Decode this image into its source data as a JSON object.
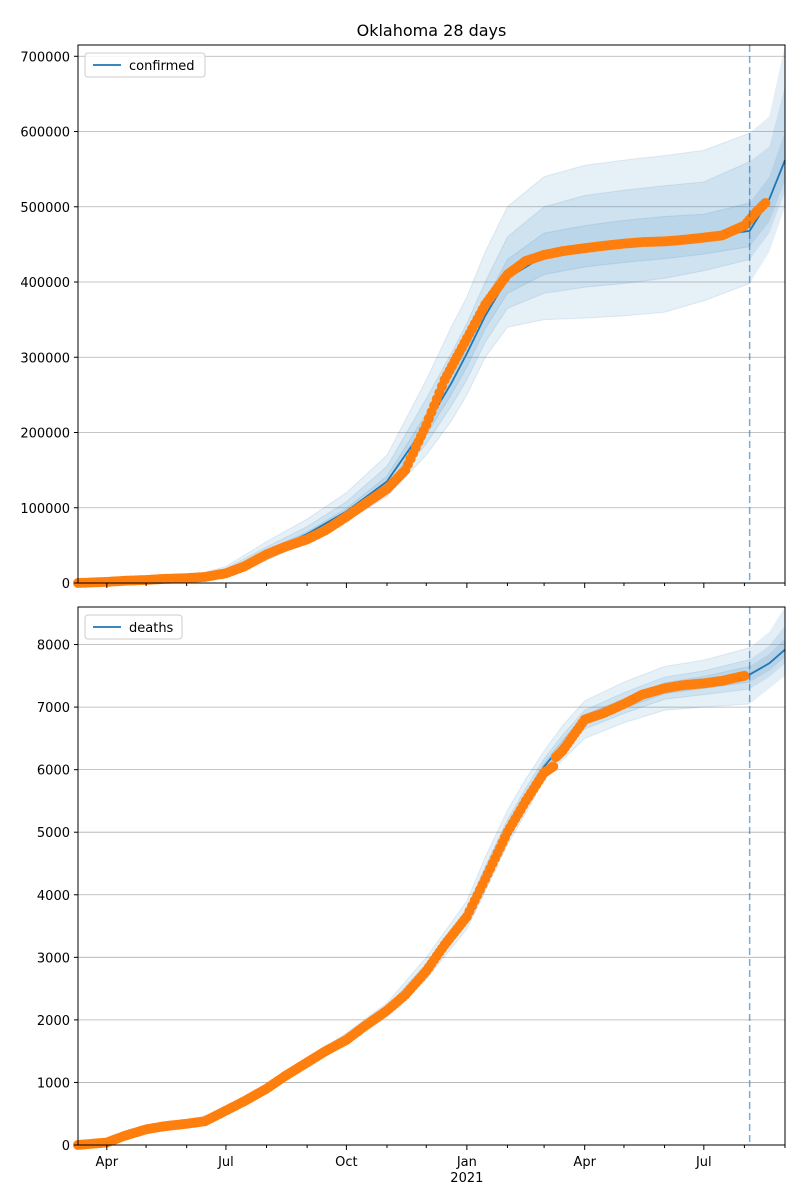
{
  "chart_data": [
    {
      "type": "line",
      "title": "Oklahoma 28 days",
      "legend": {
        "label": "confirmed",
        "placement": "top-left"
      },
      "ylim": [
        0,
        715000
      ],
      "y_ticks": [
        0,
        100000,
        200000,
        300000,
        400000,
        500000,
        600000,
        700000
      ],
      "y_tick_labels": [
        "0",
        "100000",
        "200000",
        "300000",
        "400000",
        "500000",
        "600000",
        "700000"
      ],
      "grid": true,
      "forecast_start": "2021-08-05",
      "model_x": [
        "2020-03-10",
        "2020-04-01",
        "2020-05-01",
        "2020-06-01",
        "2020-07-01",
        "2020-08-01",
        "2020-09-01",
        "2020-10-01",
        "2020-11-01",
        "2020-12-01",
        "2020-12-20",
        "2021-01-01",
        "2021-01-15",
        "2021-02-01",
        "2021-03-01",
        "2021-04-01",
        "2021-05-01",
        "2021-06-01",
        "2021-07-01",
        "2021-08-05",
        "2021-08-20",
        "2021-09-01"
      ],
      "model_y": [
        0,
        1500,
        4000,
        6000,
        15000,
        40000,
        65000,
        95000,
        135000,
        210000,
        265000,
        305000,
        355000,
        405000,
        435000,
        445000,
        452000,
        457000,
        460000,
        468000,
        510000,
        562000
      ],
      "bands": [
        {
          "lower": [
            0,
            1200,
            3000,
            4000,
            8000,
            30000,
            55000,
            82000,
            115000,
            170000,
            215000,
            250000,
            300000,
            340000,
            350000,
            352000,
            355000,
            360000,
            375000,
            398000
          ],
          "upper": [
            0,
            1800,
            5000,
            8000,
            22000,
            55000,
            85000,
            120000,
            170000,
            270000,
            340000,
            380000,
            440000,
            500000,
            540000,
            555000,
            562000,
            568000,
            575000,
            598000
          ]
        },
        {
          "lower": [
            0,
            1300,
            3400,
            4800,
            11000,
            34000,
            59000,
            87000,
            123000,
            185000,
            235000,
            270000,
            320000,
            365000,
            385000,
            393000,
            398000,
            405000,
            415000,
            430000
          ],
          "upper": [
            0,
            1700,
            4600,
            7200,
            19000,
            48000,
            75000,
            108000,
            155000,
            245000,
            305000,
            345000,
            400000,
            460000,
            500000,
            515000,
            522000,
            528000,
            533000,
            560000
          ]
        },
        {
          "lower": [
            0,
            1400,
            3700,
            5400,
            13000,
            37000,
            62000,
            91000,
            129000,
            197000,
            250000,
            287000,
            338000,
            385000,
            410000,
            420000,
            426000,
            431000,
            437000,
            447000
          ],
          "upper": [
            0,
            1600,
            4300,
            6600,
            17000,
            43000,
            68000,
            99000,
            142000,
            225000,
            282000,
            325000,
            375000,
            430000,
            465000,
            475000,
            482000,
            487000,
            490000,
            505000
          ]
        }
      ],
      "forecast_bands": [
        {
          "x": [
            "2021-08-05",
            "2021-08-20",
            "2021-09-01"
          ],
          "lower": [
            398000,
            440000,
            500000
          ],
          "upper": [
            598000,
            620000,
            715000
          ]
        },
        {
          "x": [
            "2021-08-05",
            "2021-08-20",
            "2021-09-01"
          ],
          "lower": [
            430000,
            465000,
            520000
          ],
          "upper": [
            560000,
            580000,
            660000
          ]
        },
        {
          "x": [
            "2021-08-05",
            "2021-08-20",
            "2021-09-01"
          ],
          "lower": [
            447000,
            480000,
            535000
          ],
          "upper": [
            505000,
            540000,
            600000
          ]
        }
      ],
      "observed_x": [
        "2020-03-10",
        "2020-04-01",
        "2020-04-15",
        "2020-05-01",
        "2020-05-15",
        "2020-06-01",
        "2020-06-15",
        "2020-07-01",
        "2020-07-15",
        "2020-08-01",
        "2020-08-15",
        "2020-09-01",
        "2020-09-15",
        "2020-10-01",
        "2020-10-15",
        "2020-11-01",
        "2020-11-15",
        "2020-12-01",
        "2020-12-15",
        "2021-01-01",
        "2021-01-15",
        "2021-02-01",
        "2021-02-15",
        "2021-03-01",
        "2021-03-15",
        "2021-04-01",
        "2021-04-15",
        "2021-05-01",
        "2021-05-15",
        "2021-06-01",
        "2021-06-15",
        "2021-07-01",
        "2021-07-15",
        "2021-08-01",
        "2021-08-10",
        "2021-08-17"
      ],
      "observed_y": [
        0,
        1500,
        3000,
        4000,
        5500,
        6500,
        8000,
        13000,
        22000,
        38000,
        48000,
        58000,
        70000,
        88000,
        105000,
        125000,
        150000,
        210000,
        270000,
        325000,
        370000,
        410000,
        428000,
        436000,
        441000,
        445000,
        448000,
        451000,
        453000,
        454000,
        456000,
        459000,
        462000,
        475000,
        493000,
        505000
      ]
    },
    {
      "type": "line",
      "title": "",
      "xlabel": "",
      "legend": {
        "label": "deaths",
        "placement": "top-left"
      },
      "ylim": [
        0,
        8600
      ],
      "y_ticks": [
        0,
        1000,
        2000,
        3000,
        4000,
        5000,
        6000,
        7000,
        8000
      ],
      "y_tick_labels": [
        "0",
        "1000",
        "2000",
        "3000",
        "4000",
        "5000",
        "6000",
        "7000",
        "8000"
      ],
      "x_range": [
        "2020-03-10",
        "2021-09-01"
      ],
      "x_ticks": [
        {
          "date": "2020-04-01",
          "label": "Apr"
        },
        {
          "date": "2020-07-01",
          "label": "Jul"
        },
        {
          "date": "2020-10-01",
          "label": "Oct"
        },
        {
          "date": "2021-01-01",
          "label": "Jan"
        },
        {
          "date": "2021-04-01",
          "label": "Apr"
        },
        {
          "date": "2021-07-01",
          "label": "Jul"
        }
      ],
      "x_minor_months": [
        "2020-05-01",
        "2020-06-01",
        "2020-08-01",
        "2020-09-01",
        "2020-11-01",
        "2020-12-01",
        "2021-02-01",
        "2021-03-01",
        "2021-05-01",
        "2021-06-01",
        "2021-08-01",
        "2021-09-01"
      ],
      "x_year_label": "2021",
      "grid": true,
      "forecast_start": "2021-08-05",
      "model_x": [
        "2020-03-10",
        "2020-04-01",
        "2020-05-01",
        "2020-06-01",
        "2020-07-01",
        "2020-08-01",
        "2020-09-01",
        "2020-10-01",
        "2020-11-01",
        "2020-12-01",
        "2021-01-01",
        "2021-01-15",
        "2021-02-01",
        "2021-02-15",
        "2021-03-01",
        "2021-03-15",
        "2021-04-01",
        "2021-05-01",
        "2021-06-01",
        "2021-07-01",
        "2021-08-05",
        "2021-08-20",
        "2021-09-01"
      ],
      "model_y": [
        0,
        50,
        270,
        340,
        560,
        920,
        1300,
        1700,
        2150,
        2800,
        3650,
        4300,
        5050,
        5550,
        6050,
        6400,
        6800,
        7050,
        7300,
        7400,
        7520,
        7700,
        7920
      ],
      "bands": [
        {
          "lower": [
            0,
            40,
            250,
            320,
            520,
            870,
            1230,
            1620,
            2050,
            2650,
            3450,
            4050,
            4800,
            5300,
            5850,
            6150,
            6500,
            6750,
            6950,
            7000,
            7050
          ],
          "upper": [
            0,
            60,
            290,
            360,
            600,
            980,
            1380,
            1790,
            2270,
            3000,
            3900,
            4600,
            5350,
            5850,
            6300,
            6700,
            7100,
            7400,
            7650,
            7750,
            7950
          ]
        },
        {
          "lower": [
            0,
            45,
            260,
            330,
            540,
            895,
            1265,
            1660,
            2100,
            2725,
            3550,
            4175,
            4925,
            5425,
            5950,
            6275,
            6650,
            6900,
            7125,
            7200,
            7290
          ],
          "upper": [
            0,
            55,
            280,
            350,
            580,
            950,
            1340,
            1745,
            2210,
            2900,
            3775,
            4450,
            5200,
            5700,
            6175,
            6550,
            6950,
            7230,
            7480,
            7580,
            7760
          ]
        },
        {
          "lower": [
            0,
            48,
            265,
            335,
            550,
            910,
            1285,
            1680,
            2130,
            2770,
            3600,
            4240,
            4990,
            5490,
            6000,
            6340,
            6725,
            6980,
            7215,
            7300,
            7400
          ],
          "upper": [
            0,
            52,
            275,
            345,
            570,
            935,
            1320,
            1725,
            2180,
            2850,
            3710,
            4370,
            5120,
            5620,
            6110,
            6470,
            6880,
            7130,
            7390,
            7490,
            7650
          ]
        }
      ],
      "forecast_bands": [
        {
          "x": [
            "2021-08-05",
            "2021-08-20",
            "2021-09-01"
          ],
          "lower": [
            7050,
            7300,
            7500
          ],
          "upper": [
            7950,
            8200,
            8600
          ]
        },
        {
          "x": [
            "2021-08-05",
            "2021-08-20",
            "2021-09-01"
          ],
          "lower": [
            7290,
            7480,
            7700
          ],
          "upper": [
            7760,
            7980,
            8300
          ]
        },
        {
          "x": [
            "2021-08-05",
            "2021-08-20",
            "2021-09-01"
          ],
          "lower": [
            7400,
            7580,
            7800
          ],
          "upper": [
            7650,
            7850,
            8100
          ]
        }
      ],
      "observed_x": [
        "2020-03-10",
        "2020-04-01",
        "2020-04-15",
        "2020-05-01",
        "2020-05-15",
        "2020-06-01",
        "2020-06-15",
        "2020-07-01",
        "2020-07-15",
        "2020-08-01",
        "2020-08-15",
        "2020-09-01",
        "2020-09-15",
        "2020-10-01",
        "2020-10-15",
        "2020-11-01",
        "2020-11-15",
        "2020-12-01",
        "2020-12-15",
        "2021-01-01",
        "2021-01-15",
        "2021-02-01",
        "2021-02-15",
        "2021-03-01",
        "2021-03-08",
        "2021-03-10",
        "2021-03-15",
        "2021-04-01",
        "2021-04-15",
        "2021-05-01",
        "2021-05-15",
        "2021-06-01",
        "2021-06-15",
        "2021-07-01",
        "2021-07-15",
        "2021-08-01"
      ],
      "observed_y": [
        0,
        40,
        150,
        250,
        300,
        340,
        380,
        550,
        700,
        900,
        1100,
        1320,
        1500,
        1680,
        1900,
        2150,
        2400,
        2780,
        3200,
        3650,
        4250,
        5000,
        5500,
        5950,
        6050,
        6200,
        6300,
        6800,
        6900,
        7050,
        7200,
        7300,
        7350,
        7380,
        7420,
        7500
      ]
    }
  ],
  "colors": {
    "line": "#1f77b4",
    "band": "#1f77b4",
    "observed": "#ff7f0e",
    "grid": "#b0b0b0",
    "axis": "#000000",
    "forecast_line": "#1f77b4"
  }
}
